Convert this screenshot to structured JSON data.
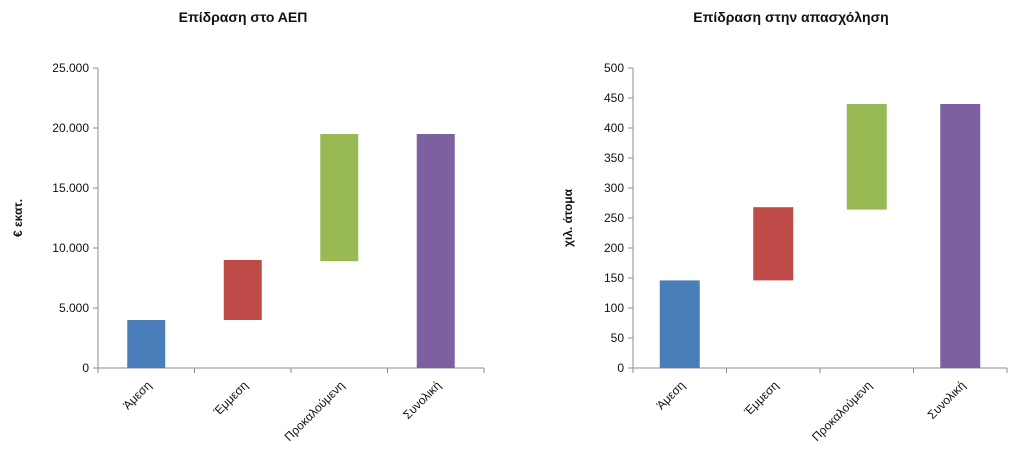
{
  "chart_data": [
    {
      "type": "bar",
      "title": "Επίδραση στο ΑΕΠ",
      "ylabel": "€ εκατ.",
      "xlabel": "",
      "ylim": [
        0,
        25000
      ],
      "yticks": [
        "0",
        "5.000",
        "10.000",
        "15.000",
        "20.000",
        "25.000"
      ],
      "ytick_values": [
        0,
        5000,
        10000,
        15000,
        20000,
        25000
      ],
      "categories": [
        "Άμεση",
        "Έμμεση",
        "Προκαλούμενη",
        "Συνολική"
      ],
      "bars": [
        {
          "category": "Άμεση",
          "base": 0,
          "top": 4000,
          "color": "#4a7ebb"
        },
        {
          "category": "Έμμεση",
          "base": 4000,
          "top": 9000,
          "color": "#be4b48"
        },
        {
          "category": "Προκαλούμενη",
          "base": 8900,
          "top": 19500,
          "color": "#98b954"
        },
        {
          "category": "Συνολική",
          "base": 0,
          "top": 19500,
          "color": "#7d60a0"
        }
      ],
      "grid": false,
      "legend": "none"
    },
    {
      "type": "bar",
      "title": "Επίδραση στην απασχόληση",
      "ylabel": "χιλ. άτομα",
      "xlabel": "",
      "ylim": [
        0,
        500
      ],
      "yticks": [
        "0",
        "50",
        "100",
        "150",
        "200",
        "250",
        "300",
        "350",
        "400",
        "450",
        "500"
      ],
      "ytick_values": [
        0,
        50,
        100,
        150,
        200,
        250,
        300,
        350,
        400,
        450,
        500
      ],
      "categories": [
        "Άμεση",
        "Έμμεση",
        "Προκαλούμενη",
        "Συνολική"
      ],
      "bars": [
        {
          "category": "Άμεση",
          "base": 0,
          "top": 146,
          "color": "#4a7ebb"
        },
        {
          "category": "Έμμεση",
          "base": 146,
          "top": 268,
          "color": "#be4b48"
        },
        {
          "category": "Προκαλούμενη",
          "base": 264,
          "top": 440,
          "color": "#98b954"
        },
        {
          "category": "Συνολική",
          "base": 0,
          "top": 440,
          "color": "#7d60a0"
        }
      ],
      "grid": false,
      "legend": "none"
    }
  ]
}
